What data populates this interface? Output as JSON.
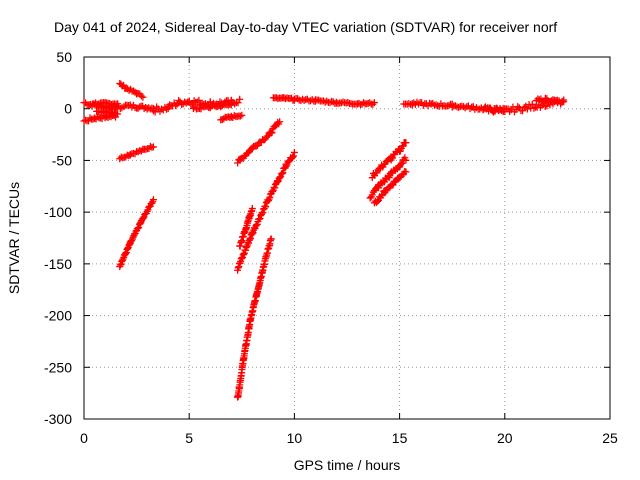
{
  "chart_data": {
    "type": "scatter",
    "title": "Day 041 of 2024, Sidereal Day-to-day VTEC variation (SDTVAR) for receiver norf",
    "xlabel": "GPS time / hours",
    "ylabel": "SDTVAR / TECUs",
    "xlim": [
      0,
      25
    ],
    "ylim": [
      -300,
      50
    ],
    "xticks": [
      0,
      5,
      10,
      15,
      20,
      25
    ],
    "yticks": [
      50,
      0,
      -50,
      -100,
      -150,
      -200,
      -250,
      -300
    ],
    "grid": true,
    "marker": "plus",
    "color": "#ff0000",
    "series": [
      {
        "segments": [
          {
            "x": [
              0.0,
              0.3,
              0.6,
              1.0,
              1.5,
              1.8
            ],
            "y": [
              6,
              4,
              3,
              2,
              1,
              1
            ],
            "spread": 3
          },
          {
            "x": [
              0.0,
              0.5,
              1.0,
              1.5
            ],
            "y": [
              -12,
              -9,
              -8,
              -7
            ],
            "spread": 3
          },
          {
            "x": [
              0.6,
              1.0,
              1.6
            ],
            "y": [
              -2,
              -3,
              -5
            ],
            "spread": 2
          },
          {
            "x": [
              0.4,
              1.0,
              1.6
            ],
            "y": [
              5,
              5,
              5
            ],
            "spread": 2
          },
          {
            "x": [
              1.7,
              2.0,
              2.5,
              2.8
            ],
            "y": [
              24,
              20,
              15,
              12
            ],
            "spread": 2
          },
          {
            "x": [
              1.9,
              2.5,
              3.0,
              3.3
            ],
            "y": [
              3,
              2,
              1,
              1
            ],
            "spread": 3
          },
          {
            "x": [
              1.7,
              2.2,
              2.8,
              3.3
            ],
            "y": [
              -48,
              -44,
              -40,
              -36
            ],
            "spread": 2
          },
          {
            "x": [
              1.7,
              2.2,
              2.7,
              3.3
            ],
            "y": [
              -152,
              -130,
              -110,
              -88
            ],
            "spread": 2
          },
          {
            "x": [
              3.3,
              4.0,
              4.5,
              5.0,
              6.0,
              7.0,
              7.4
            ],
            "y": [
              -1,
              1,
              6,
              7,
              5,
              6,
              8
            ],
            "spread": 5
          },
          {
            "x": [
              5.2,
              6.0,
              6.5,
              7.0
            ],
            "y": [
              0,
              2,
              3,
              4
            ],
            "spread": 3
          },
          {
            "x": [
              6.5,
              7.0,
              7.5
            ],
            "y": [
              -10,
              -8,
              -6
            ],
            "spread": 2
          },
          {
            "x": [
              7.3,
              8.0,
              8.8,
              9.3
            ],
            "y": [
              -52,
              -38,
              -25,
              -12
            ],
            "spread": 3
          },
          {
            "x": [
              7.4,
              7.7,
              7.9,
              8.0
            ],
            "y": [
              -133,
              -115,
              -102,
              -96
            ],
            "spread": 3
          },
          {
            "x": [
              7.3,
              8.0,
              8.6,
              9.2,
              9.6,
              10.0
            ],
            "y": [
              -155,
              -120,
              -95,
              -70,
              -55,
              -43
            ],
            "spread": 3
          },
          {
            "x": [
              7.3,
              7.6,
              7.9,
              8.2,
              8.5,
              8.9
            ],
            "y": [
              -280,
              -240,
              -205,
              -180,
              -155,
              -125
            ],
            "spread": 3
          },
          {
            "x": [
              9.0,
              9.5,
              10.0,
              11.0,
              12.0,
              13.0,
              13.8
            ],
            "y": [
              10,
              10,
              9,
              8,
              6,
              5,
              5
            ],
            "spread": 2
          },
          {
            "x": [
              13.7,
              14.2,
              14.6,
              15.0,
              15.3
            ],
            "y": [
              -65,
              -55,
              -48,
              -40,
              -32
            ],
            "spread": 4
          },
          {
            "x": [
              13.6,
              14.0,
              14.5,
              15.0,
              15.3
            ],
            "y": [
              -85,
              -75,
              -65,
              -55,
              -48
            ],
            "spread": 4
          },
          {
            "x": [
              13.8,
              14.3,
              14.8,
              15.3
            ],
            "y": [
              -92,
              -80,
              -70,
              -60
            ],
            "spread": 3
          },
          {
            "x": [
              15.2,
              15.6
            ],
            "y": [
              5,
              4
            ],
            "spread": 1
          },
          {
            "x": [
              15.6,
              16.5,
              17.5,
              18.5,
              19.5,
              20.0
            ],
            "y": [
              5,
              4,
              3,
              1,
              -1,
              -2
            ],
            "spread": 3
          },
          {
            "x": [
              19.0,
              20.0,
              21.0,
              22.0,
              22.8
            ],
            "y": [
              0,
              -2,
              1,
              5,
              6
            ],
            "spread": 5
          },
          {
            "x": [
              21.5,
              22.0,
              22.5,
              22.8
            ],
            "y": [
              8,
              9,
              7,
              6
            ],
            "spread": 3
          }
        ]
      }
    ]
  }
}
